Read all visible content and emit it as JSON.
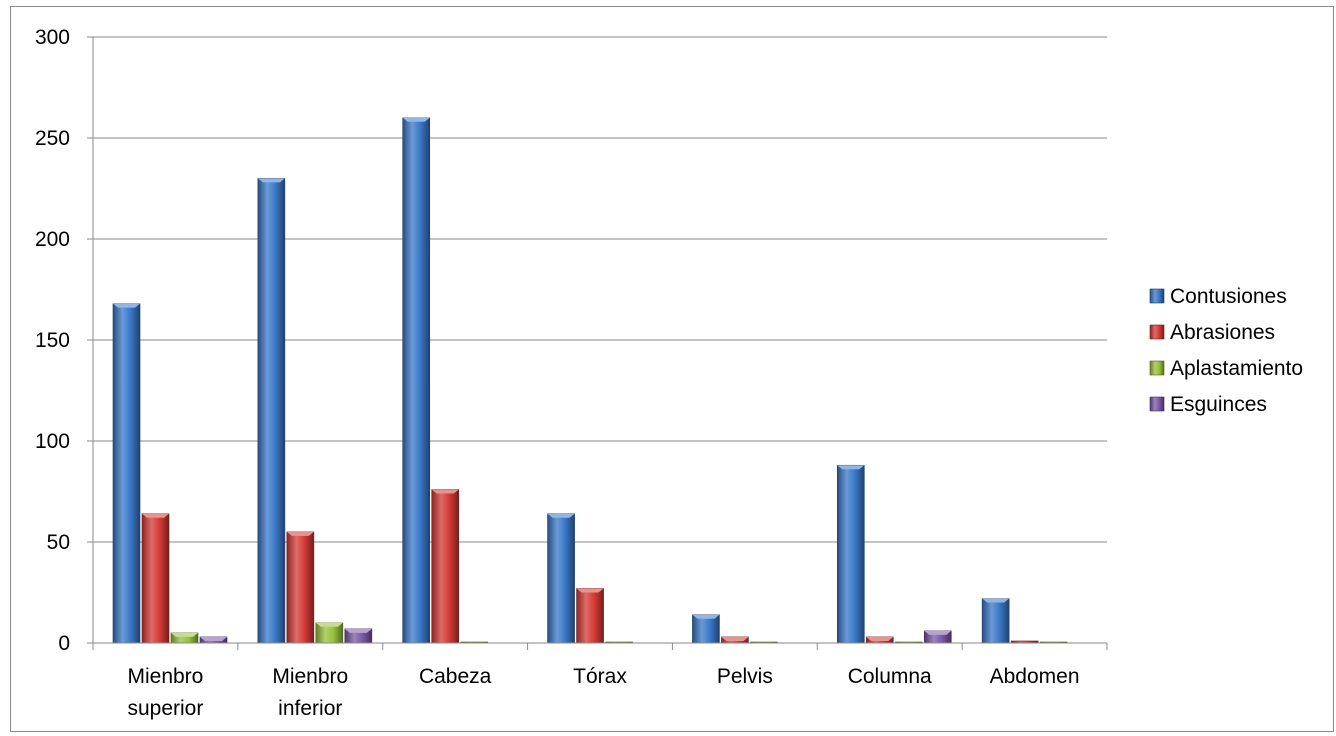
{
  "chart_data": {
    "type": "bar",
    "title": "",
    "xlabel": "",
    "ylabel": "",
    "ylim": [
      0,
      300
    ],
    "yticks": [
      0,
      50,
      100,
      150,
      200,
      250,
      300
    ],
    "grid": true,
    "legend_position": "right",
    "categories": [
      [
        "Mienbro",
        "superior"
      ],
      [
        "Mienbro",
        "inferior"
      ],
      [
        "Cabeza"
      ],
      [
        "Tórax"
      ],
      [
        "Pelvis"
      ],
      [
        "Columna"
      ],
      [
        "Abdomen"
      ]
    ],
    "series": [
      {
        "name": "Contusiones",
        "color": "#3a78c8",
        "values": [
          168,
          230,
          260,
          64,
          14,
          88,
          22
        ]
      },
      {
        "name": "Abrasiones",
        "color": "#d63a36",
        "values": [
          64,
          55,
          76,
          27,
          3,
          3,
          1
        ]
      },
      {
        "name": "Aplastamiento",
        "color": "#98c23a",
        "values": [
          5,
          10,
          0.5,
          0.5,
          0.5,
          0.5,
          0.5
        ]
      },
      {
        "name": "Esguinces",
        "color": "#7b58a8",
        "values": [
          3,
          7,
          0,
          0,
          0,
          6,
          0
        ]
      }
    ]
  }
}
